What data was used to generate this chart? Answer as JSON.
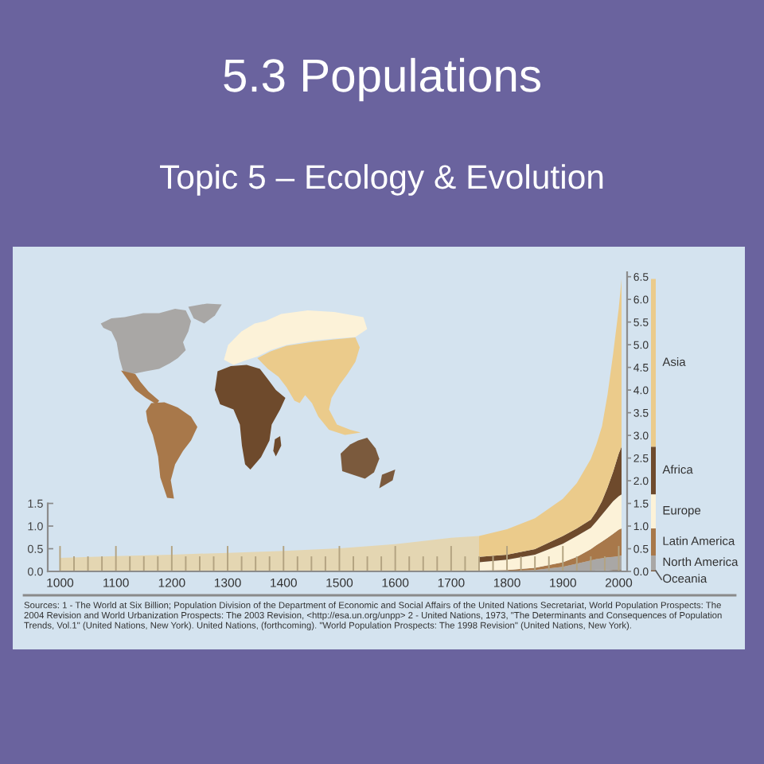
{
  "chart_data": {
    "type": "area",
    "title": "5.3 Populations",
    "subtitle": "Topic 5 – Ecology & Evolution",
    "annotations": [
      "Sources: 1 - The World at Six Billion; Population Division of the Department of Economic and Social Affairs of the United Nations Secretariat, World Population Prospects: The 2004 Revision and World Urbanization Prospects: The 2003 Revision, <http://esa.un.org/unpp> 2 - United Nations, 1973, \"The Determinants and Consequences of Population Trends, Vol.1\" (United Nations, New York). United Nations, (forthcoming). \"World Population Prospects: The 1998 Revision\" (United Nations, New York)."
    ],
    "stacked": true,
    "x": [
      1000,
      1100,
      1200,
      1300,
      1400,
      1500,
      1600,
      1700,
      1750,
      1750,
      1800,
      1850,
      1900,
      1925,
      1950,
      1960,
      1970,
      1980,
      1990,
      2000,
      2005
    ],
    "series": [
      {
        "color": "#e4d6b2",
        "values": [
          0.3,
          0.34,
          0.37,
          0.41,
          0.45,
          0.51,
          0.6,
          0.74,
          0.78,
          null,
          null,
          null,
          null,
          null,
          null,
          null,
          null,
          null,
          null,
          null,
          null
        ]
      },
      {
        "name": "Oceania",
        "color": "#7b5a3d",
        "values": [
          null,
          null,
          null,
          null,
          null,
          null,
          null,
          null,
          null,
          0,
          0,
          0,
          0.01,
          0.01,
          0.01,
          0.02,
          0.02,
          0.02,
          0.03,
          0.03,
          0.03
        ]
      },
      {
        "name": "North America",
        "color": "#a9a7a5",
        "values": [
          null,
          null,
          null,
          null,
          null,
          null,
          null,
          null,
          null,
          0.01,
          0.01,
          0.03,
          0.09,
          0.16,
          0.23,
          0.25,
          0.27,
          0.29,
          0.29,
          0.31,
          0.32
        ]
      },
      {
        "name": "Latin America",
        "color": "#a8784a",
        "values": [
          null,
          null,
          null,
          null,
          null,
          null,
          null,
          null,
          null,
          0.01,
          0.02,
          0.05,
          0.1,
          0.15,
          0.25,
          0.31,
          0.37,
          0.43,
          0.51,
          0.58,
          0.6
        ]
      },
      {
        "name": "Europe",
        "color": "#fcf2d8",
        "values": [
          null,
          null,
          null,
          null,
          null,
          null,
          null,
          null,
          null,
          0.18,
          0.23,
          0.29,
          0.41,
          0.46,
          0.47,
          0.52,
          0.59,
          0.66,
          0.72,
          0.74,
          0.75
        ]
      },
      {
        "name": "Africa",
        "color": "#6e4a2c",
        "values": [
          null,
          null,
          null,
          null,
          null,
          null,
          null,
          null,
          null,
          0.12,
          0.11,
          0.12,
          0.17,
          0.17,
          0.18,
          0.22,
          0.3,
          0.45,
          0.65,
          0.94,
          1.05
        ]
      },
      {
        "name": "Asia",
        "color": "#ebcb8b",
        "values": [
          null,
          null,
          null,
          null,
          null,
          null,
          null,
          null,
          null,
          0.46,
          0.56,
          0.68,
          0.82,
          1.0,
          1.34,
          1.48,
          1.65,
          2.05,
          2.6,
          3.2,
          3.7
        ]
      }
    ],
    "xlim": [
      978,
      2015
    ],
    "xticks": [
      1000,
      {
        "value": 1025,
        "label": null
      },
      {
        "value": 1050,
        "label": null
      },
      {
        "value": 1075,
        "label": null
      },
      1100,
      {
        "value": 1125,
        "label": null
      },
      {
        "value": 1150,
        "label": null
      },
      {
        "value": 1175,
        "label": null
      },
      1200,
      {
        "value": 1225,
        "label": null
      },
      {
        "value": 1250,
        "label": null
      },
      {
        "value": 1275,
        "label": null
      },
      1300,
      {
        "value": 1325,
        "label": null
      },
      {
        "value": 1350,
        "label": null
      },
      {
        "value": 1375,
        "label": null
      },
      1400,
      {
        "value": 1425,
        "label": null
      },
      {
        "value": 1450,
        "label": null
      },
      {
        "value": 1475,
        "label": null
      },
      1500,
      {
        "value": 1525,
        "label": null
      },
      {
        "value": 1550,
        "label": null
      },
      {
        "value": 1575,
        "label": null
      },
      1600,
      {
        "value": 1625,
        "label": null
      },
      {
        "value": 1650,
        "label": null
      },
      {
        "value": 1675,
        "label": null
      },
      1700,
      {
        "value": 1725,
        "label": null
      },
      {
        "value": 1750,
        "label": null
      },
      {
        "value": 1775,
        "label": null
      },
      1800,
      {
        "value": 1825,
        "label": null
      },
      {
        "value": 1850,
        "label": null
      },
      {
        "value": 1875,
        "label": null
      },
      1900,
      {
        "value": 1925,
        "label": null
      },
      {
        "value": 1950,
        "label": null
      },
      {
        "value": 1975,
        "label": null
      },
      2000
    ],
    "ylim": [
      0,
      6.6
    ],
    "yticks": [
      {
        "value": 0,
        "label": "0.0"
      },
      {
        "value": 0.5,
        "label": "0.5"
      },
      {
        "value": 1,
        "label": "1.0"
      },
      {
        "value": 1.5,
        "label": "1.5"
      }
    ],
    "y2lim": [
      0,
      6.6
    ],
    "y2ticks": [
      {
        "value": 0,
        "label": "0.0"
      },
      {
        "value": 0.5,
        "label": "0.5"
      },
      {
        "value": 1,
        "label": "1.0"
      },
      {
        "value": 1.5,
        "label": "1.5"
      },
      {
        "value": 2,
        "label": "2.0"
      },
      {
        "value": 2.5,
        "label": "2.5"
      },
      {
        "value": 3,
        "label": "3.0"
      },
      {
        "value": 3.5,
        "label": "3.5"
      },
      {
        "value": 4,
        "label": "4.0"
      },
      {
        "value": 4.5,
        "label": "4.5"
      },
      {
        "value": 5,
        "label": "5.0"
      },
      {
        "value": 5.5,
        "label": "5.5"
      },
      {
        "value": 6,
        "label": "6.0"
      },
      {
        "value": 6.5,
        "label": "6.5"
      }
    ],
    "legend": "right"
  }
}
